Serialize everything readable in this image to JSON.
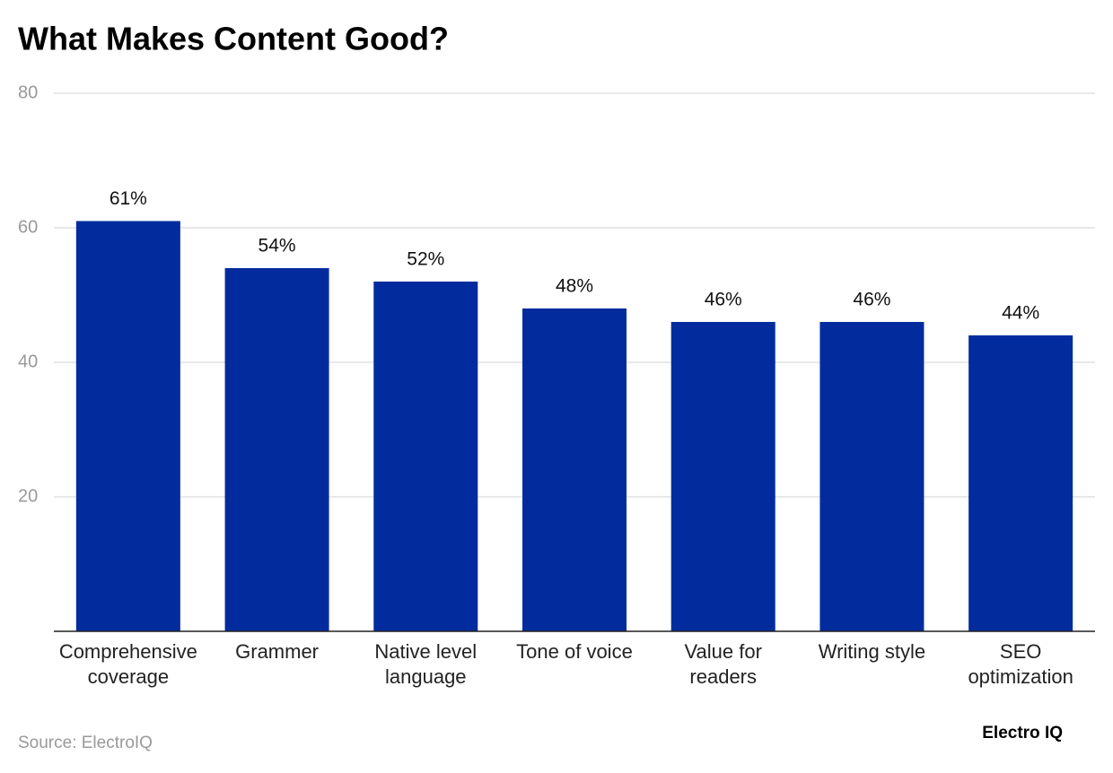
{
  "chart_data": {
    "type": "bar",
    "title": "What Makes Content Good?",
    "categories": [
      "Comprehensive\ncoverage",
      "Grammer",
      "Native level\nlanguage",
      "Tone of voice",
      "Value for\nreaders",
      "Writing style",
      "SEO\noptimization"
    ],
    "values": [
      61,
      54,
      52,
      48,
      46,
      46,
      44
    ],
    "value_labels": [
      "61%",
      "54%",
      "52%",
      "48%",
      "46%",
      "46%",
      "44%"
    ],
    "color": "#022c9e",
    "ylim": [
      0,
      80
    ],
    "yticks": [
      20,
      40,
      60,
      80
    ],
    "grid": true,
    "source": "Source: ElectroIQ",
    "brand": "Electro IQ"
  }
}
